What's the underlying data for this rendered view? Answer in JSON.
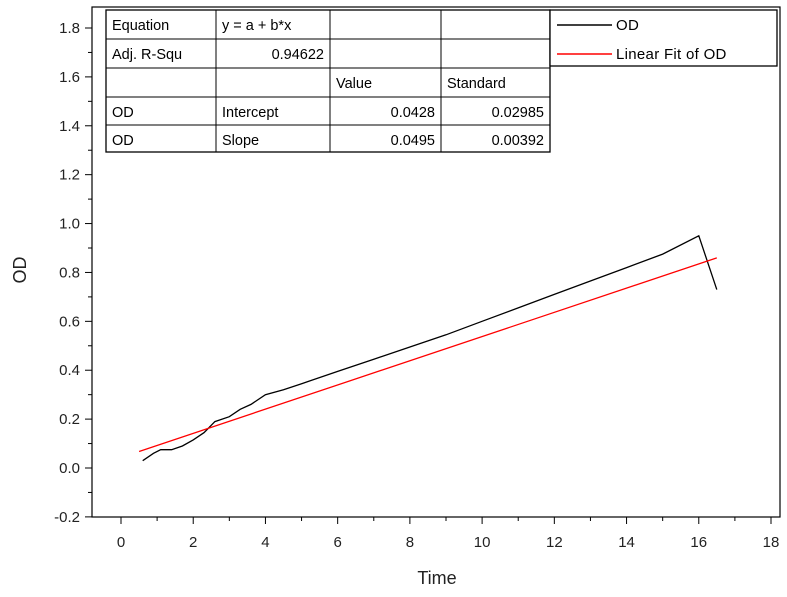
{
  "chart_data": {
    "type": "line",
    "xlabel": "Time",
    "ylabel": "OD",
    "xlim": [
      -1,
      18
    ],
    "ylim": [
      -0.2,
      1.9
    ],
    "x_ticks": [
      0,
      2,
      4,
      6,
      8,
      10,
      12,
      14,
      16,
      18
    ],
    "y_ticks": [
      -0.2,
      0.0,
      0.2,
      0.4,
      0.6,
      0.8,
      1.0,
      1.2,
      1.4,
      1.6,
      1.8
    ],
    "x_tick_labels": [
      "0",
      "2",
      "4",
      "6",
      "8",
      "10",
      "12",
      "14",
      "16",
      "18"
    ],
    "y_tick_labels": [
      "-0.2",
      "0.0",
      "0.2",
      "0.4",
      "0.6",
      "0.8",
      "1.0",
      "1.2",
      "1.4",
      "1.6",
      "1.8"
    ],
    "grid": false,
    "legend_position": "top-right",
    "series": [
      {
        "name": "OD",
        "color": "#000000",
        "x": [
          0.6,
          0.9,
          1.1,
          1.4,
          1.7,
          2.0,
          2.3,
          2.6,
          3.0,
          3.3,
          3.6,
          4.0,
          4.5,
          5.0,
          6.0,
          7.0,
          8.0,
          9.0,
          10.0,
          11.0,
          12.0,
          13.0,
          14.0,
          15.0,
          16.0,
          16.5
        ],
        "y": [
          0.03,
          0.06,
          0.075,
          0.075,
          0.09,
          0.115,
          0.145,
          0.19,
          0.21,
          0.24,
          0.26,
          0.3,
          0.32,
          0.345,
          0.395,
          0.445,
          0.495,
          0.545,
          0.6,
          0.655,
          0.71,
          0.765,
          0.82,
          0.875,
          0.95,
          0.73
        ]
      },
      {
        "name": "Linear Fit of OD",
        "color": "#ff0000",
        "x": [
          0.5,
          16.5
        ],
        "y": [
          0.0676,
          0.8596
        ]
      }
    ],
    "stats_table": {
      "rows": [
        [
          "Equation",
          "y = a + b*x",
          "",
          ""
        ],
        [
          "Adj. R-Squ",
          "0.94622",
          "",
          ""
        ],
        [
          "",
          "",
          "Value",
          "Standard"
        ],
        [
          "OD",
          "Intercept",
          "0.0428",
          "0.02985"
        ],
        [
          "OD",
          "Slope",
          "0.0495",
          "0.00392"
        ]
      ]
    }
  }
}
